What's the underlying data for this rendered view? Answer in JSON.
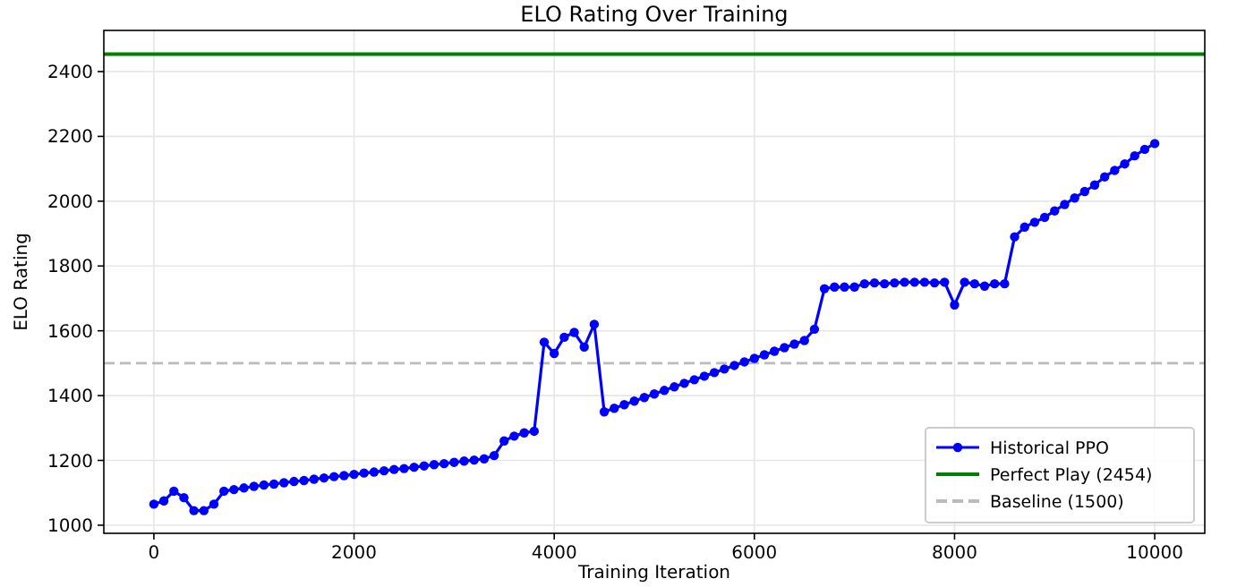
{
  "chart_data": {
    "type": "line",
    "title": "ELO Rating Over Training",
    "xlabel": "Training Iteration",
    "ylabel": "ELO Rating",
    "x": [
      0,
      100,
      200,
      300,
      400,
      500,
      600,
      700,
      800,
      900,
      1000,
      1100,
      1200,
      1300,
      1400,
      1500,
      1600,
      1700,
      1800,
      1900,
      2000,
      2100,
      2200,
      2300,
      2400,
      2500,
      2600,
      2700,
      2800,
      2900,
      3000,
      3100,
      3200,
      3300,
      3400,
      3500,
      3600,
      3700,
      3800,
      3900,
      4000,
      4100,
      4200,
      4300,
      4400,
      4500,
      4600,
      4700,
      4800,
      4900,
      5000,
      5100,
      5200,
      5300,
      5400,
      5500,
      5600,
      5700,
      5800,
      5900,
      6000,
      6100,
      6200,
      6300,
      6400,
      6500,
      6600,
      6700,
      6800,
      6900,
      7000,
      7100,
      7200,
      7300,
      7400,
      7500,
      7600,
      7700,
      7800,
      7900,
      8000,
      8100,
      8200,
      8300,
      8400,
      8500,
      8600,
      8700,
      8800,
      8900,
      9000,
      9100,
      9200,
      9300,
      9400,
      9500,
      9600,
      9700,
      9800,
      9900,
      10000
    ],
    "series": [
      {
        "name": "Historical PPO",
        "color": "#0000ff",
        "values": [
          1065,
          1075,
          1105,
          1085,
          1045,
          1045,
          1065,
          1105,
          1110,
          1115,
          1120,
          1124,
          1127,
          1131,
          1135,
          1138,
          1142,
          1146,
          1150,
          1153,
          1157,
          1161,
          1164,
          1168,
          1172,
          1175,
          1179,
          1183,
          1187,
          1190,
          1194,
          1198,
          1201,
          1205,
          1215,
          1260,
          1275,
          1285,
          1290,
          1565,
          1530,
          1580,
          1595,
          1550,
          1620,
          1350,
          1361,
          1372,
          1383,
          1394,
          1405,
          1416,
          1427,
          1438,
          1449,
          1460,
          1471,
          1482,
          1493,
          1504,
          1515,
          1526,
          1537,
          1548,
          1559,
          1570,
          1605,
          1730,
          1735,
          1735,
          1735,
          1745,
          1748,
          1745,
          1748,
          1750,
          1750,
          1750,
          1748,
          1750,
          1680,
          1750,
          1745,
          1738,
          1745,
          1745,
          1890,
          1920,
          1935,
          1950,
          1970,
          1990,
          2010,
          2030,
          2050,
          2075,
          2095,
          2115,
          2140,
          2160,
          2178
        ]
      }
    ],
    "ref_lines": [
      {
        "axis": "y",
        "value": 2454,
        "label": "Perfect Play (2454)",
        "color": "#008000",
        "line_style": "solid"
      },
      {
        "axis": "y",
        "value": 1500,
        "label": "Baseline (1500)",
        "color": "#bbbbbb",
        "line_style": "dashed"
      }
    ],
    "xlim": [
      -500,
      10500
    ],
    "ylim": [
      975,
      2527
    ],
    "xticks": [
      0,
      2000,
      4000,
      6000,
      8000,
      10000
    ],
    "yticks": [
      1000,
      1200,
      1400,
      1600,
      1800,
      2000,
      2200,
      2400
    ],
    "grid": true,
    "legend": "bottom right",
    "marker": "circle",
    "line_style": "solid"
  }
}
